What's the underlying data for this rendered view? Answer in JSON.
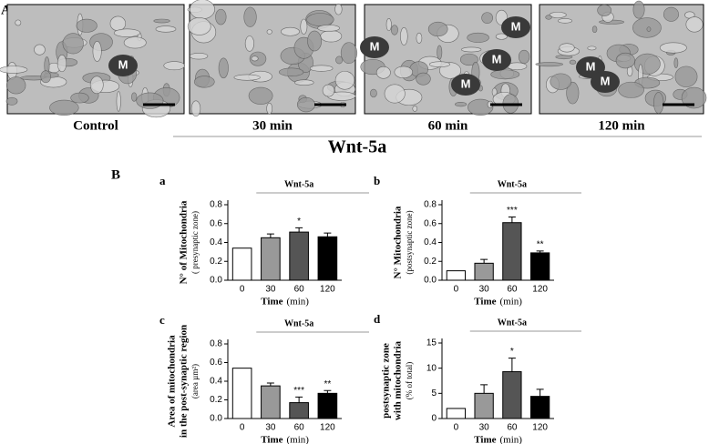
{
  "panel_a": {
    "letter": "A",
    "group_label": "Wnt-5a",
    "images": [
      {
        "caption": "Control",
        "labels": [
          "M"
        ]
      },
      {
        "caption": "30 min"
      },
      {
        "caption": "60 min",
        "labels": [
          "M",
          "M",
          "M",
          "M"
        ]
      },
      {
        "caption": "120 min",
        "labels": [
          "M",
          "M"
        ]
      }
    ]
  },
  "panel_b_letter": "B",
  "chart_data": [
    {
      "type": "bar",
      "panel": "a",
      "ylabel": [
        "N° of Mitochondria"
      ],
      "ylabel_note": "( presynaptic zone)",
      "xlabel": "Time",
      "xlabel_unit": "(min)",
      "group_label": "Wnt-5a",
      "categories": [
        "0",
        "30",
        "60",
        "120"
      ],
      "values": [
        0.34,
        0.45,
        0.51,
        0.46
      ],
      "errors": [
        0,
        0.04,
        0.045,
        0.04
      ],
      "significance": [
        null,
        null,
        "*",
        null
      ],
      "colors": [
        "#ffffff",
        "#999999",
        "#555555",
        "#000000"
      ],
      "ylim": [
        0,
        0.8
      ],
      "yticks": [
        {
          "value": 0,
          "label": "0.0"
        },
        0.2,
        0.4,
        0.6,
        0.8
      ]
    },
    {
      "type": "bar",
      "panel": "b",
      "ylabel": [
        "N° Mitochondria"
      ],
      "ylabel_note": "(postsynaptic zone)",
      "xlabel": "Time",
      "xlabel_unit": "(min)",
      "group_label": "Wnt-5a",
      "categories": [
        "0",
        "30",
        "60",
        "120"
      ],
      "values": [
        0.1,
        0.18,
        0.61,
        0.29
      ],
      "errors": [
        0,
        0.04,
        0.06,
        0.02
      ],
      "significance": [
        null,
        null,
        "***",
        "**"
      ],
      "colors": [
        "#ffffff",
        "#999999",
        "#555555",
        "#000000"
      ],
      "ylim": [
        0,
        0.8
      ],
      "yticks": [
        {
          "value": 0,
          "label": "0.0"
        },
        0.2,
        0.4,
        0.6,
        0.8
      ]
    },
    {
      "type": "bar",
      "panel": "c",
      "ylabel": [
        "Area of mitochondria",
        "in the post-synaptic region"
      ],
      "ylabel_note": "(area µm²)",
      "xlabel": "Time",
      "xlabel_unit": "(min)",
      "group_label": "Wnt-5a",
      "categories": [
        "0",
        "30",
        "60",
        "120"
      ],
      "values": [
        0.54,
        0.35,
        0.17,
        0.27
      ],
      "errors": [
        0,
        0.03,
        0.06,
        0.03
      ],
      "significance": [
        null,
        null,
        "***",
        "**"
      ],
      "colors": [
        "#ffffff",
        "#999999",
        "#555555",
        "#000000"
      ],
      "ylim": [
        0,
        0.8
      ],
      "yticks": [
        {
          "value": 0,
          "label": "0.0"
        },
        0.2,
        0.4,
        0.6,
        0.8
      ]
    },
    {
      "type": "bar",
      "panel": "d",
      "ylabel": [
        "postsynaptic zone",
        "with mitochondria"
      ],
      "ylabel_note": "(% of total)",
      "xlabel": "Time",
      "xlabel_unit": "(min)",
      "group_label": "Wnt-5a",
      "categories": [
        "0",
        "30",
        "60",
        "120"
      ],
      "values": [
        2,
        5,
        9.3,
        4.4
      ],
      "errors": [
        0,
        1.7,
        2.7,
        1.4
      ],
      "significance": [
        null,
        null,
        "*",
        null
      ],
      "colors": [
        "#ffffff",
        "#999999",
        "#555555",
        "#000000"
      ],
      "ylim": [
        0,
        15
      ],
      "yticks": [
        0,
        5,
        10,
        15
      ]
    }
  ]
}
